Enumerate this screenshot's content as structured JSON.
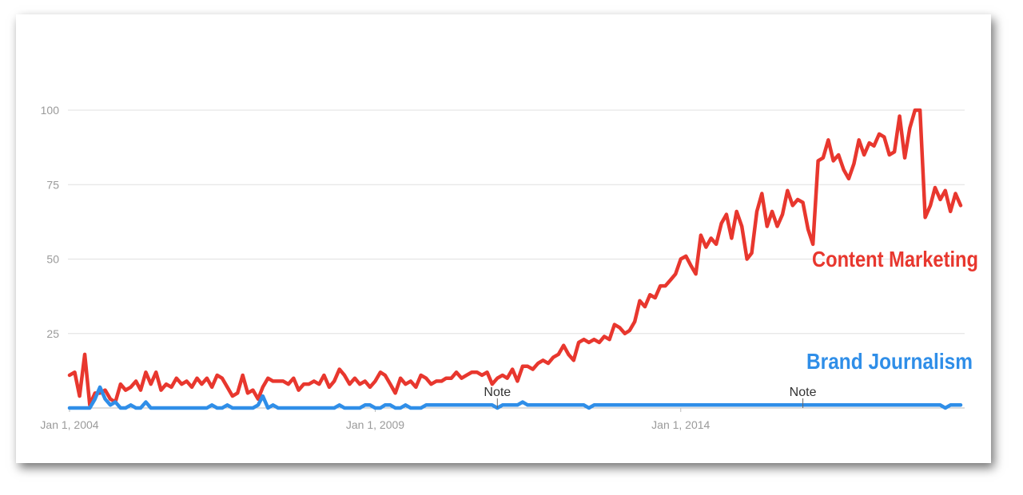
{
  "chart_data": {
    "type": "line",
    "x": [
      "2004-01-01",
      "2004-02-01",
      "2004-03-01",
      "2004-04-01",
      "2004-05-01",
      "2004-06-01",
      "2004-07-01",
      "2004-08-01",
      "2004-09-01",
      "2004-10-01",
      "2004-11-01",
      "2004-12-01",
      "2005-01-01",
      "2005-02-01",
      "2005-03-01",
      "2005-04-01",
      "2005-05-01",
      "2005-06-01",
      "2005-07-01",
      "2005-08-01",
      "2005-09-01",
      "2005-10-01",
      "2005-11-01",
      "2005-12-01",
      "2006-01-01",
      "2006-02-01",
      "2006-03-01",
      "2006-04-01",
      "2006-05-01",
      "2006-06-01",
      "2006-07-01",
      "2006-08-01",
      "2006-09-01",
      "2006-10-01",
      "2006-11-01",
      "2006-12-01",
      "2007-01-01",
      "2007-02-01",
      "2007-03-01",
      "2007-04-01",
      "2007-05-01",
      "2007-06-01",
      "2007-07-01",
      "2007-08-01",
      "2007-09-01",
      "2007-10-01",
      "2007-11-01",
      "2007-12-01",
      "2008-01-01",
      "2008-02-01",
      "2008-03-01",
      "2008-04-01",
      "2008-05-01",
      "2008-06-01",
      "2008-07-01",
      "2008-08-01",
      "2008-09-01",
      "2008-10-01",
      "2008-11-01",
      "2008-12-01",
      "2009-01-01",
      "2009-02-01",
      "2009-03-01",
      "2009-04-01",
      "2009-05-01",
      "2009-06-01",
      "2009-07-01",
      "2009-08-01",
      "2009-09-01",
      "2009-10-01",
      "2009-11-01",
      "2009-12-01",
      "2010-01-01",
      "2010-02-01",
      "2010-03-01",
      "2010-04-01",
      "2010-05-01",
      "2010-06-01",
      "2010-07-01",
      "2010-08-01",
      "2010-09-01",
      "2010-10-01",
      "2010-11-01",
      "2010-12-01",
      "2011-01-01",
      "2011-02-01",
      "2011-03-01",
      "2011-04-01",
      "2011-05-01",
      "2011-06-01",
      "2011-07-01",
      "2011-08-01",
      "2011-09-01",
      "2011-10-01",
      "2011-11-01",
      "2011-12-01",
      "2012-01-01",
      "2012-02-01",
      "2012-03-01",
      "2012-04-01",
      "2012-05-01",
      "2012-06-01",
      "2012-07-01",
      "2012-08-01",
      "2012-09-01",
      "2012-10-01",
      "2012-11-01",
      "2012-12-01",
      "2013-01-01",
      "2013-02-01",
      "2013-03-01",
      "2013-04-01",
      "2013-05-01",
      "2013-06-01",
      "2013-07-01",
      "2013-08-01",
      "2013-09-01",
      "2013-10-01",
      "2013-11-01",
      "2013-12-01",
      "2014-01-01",
      "2014-02-01",
      "2014-03-01",
      "2014-04-01",
      "2014-05-01",
      "2014-06-01",
      "2014-07-01",
      "2014-08-01",
      "2014-09-01",
      "2014-10-01",
      "2014-11-01",
      "2014-12-01",
      "2015-01-01",
      "2015-02-01",
      "2015-03-01",
      "2015-04-01",
      "2015-05-01",
      "2015-06-01",
      "2015-07-01",
      "2015-08-01",
      "2015-09-01",
      "2015-10-01",
      "2015-11-01",
      "2015-12-01",
      "2016-01-01",
      "2016-02-01",
      "2016-03-01",
      "2016-04-01",
      "2016-05-01",
      "2016-06-01",
      "2016-07-01",
      "2016-08-01",
      "2016-09-01",
      "2016-10-01",
      "2016-11-01",
      "2016-12-01",
      "2017-01-01",
      "2017-02-01",
      "2017-03-01",
      "2017-04-01",
      "2017-05-01",
      "2017-06-01",
      "2017-07-01",
      "2017-08-01",
      "2017-09-01",
      "2017-10-01",
      "2017-11-01",
      "2017-12-01",
      "2018-01-01",
      "2018-02-01",
      "2018-03-01",
      "2018-04-01",
      "2018-05-01",
      "2018-06-01",
      "2018-07-01",
      "2018-08-01"
    ],
    "series": [
      {
        "name": "Content Marketing",
        "color": "#e8372e",
        "values": [
          11,
          12,
          4,
          18,
          1,
          5,
          5,
          6,
          3,
          2,
          8,
          6,
          7,
          9,
          6,
          12,
          8,
          12,
          6,
          8,
          7,
          10,
          8,
          9,
          7,
          10,
          8,
          10,
          7,
          11,
          10,
          7,
          4,
          5,
          11,
          5,
          6,
          3,
          7,
          10,
          9,
          9,
          9,
          8,
          10,
          6,
          8,
          8,
          9,
          8,
          11,
          7,
          9,
          13,
          11,
          8,
          10,
          8,
          9,
          7,
          9,
          12,
          11,
          8,
          5,
          10,
          8,
          9,
          7,
          11,
          10,
          8,
          9,
          9,
          10,
          10,
          12,
          10,
          11,
          12,
          12,
          11,
          12,
          8,
          10,
          11,
          10,
          13,
          9,
          14,
          14,
          13,
          15,
          16,
          15,
          17,
          18,
          21,
          18,
          16,
          22,
          23,
          22,
          23,
          22,
          24,
          23,
          28,
          27,
          25,
          26,
          29,
          36,
          34,
          38,
          37,
          41,
          41,
          43,
          45,
          50,
          51,
          48,
          45,
          58,
          54,
          57,
          55,
          62,
          65,
          57,
          66,
          61,
          50,
          52,
          66,
          72,
          61,
          66,
          61,
          65,
          73,
          68,
          70,
          69,
          60,
          55,
          83,
          84,
          90,
          83,
          85,
          80,
          77,
          82,
          90,
          85,
          89,
          88,
          92,
          91,
          85,
          86,
          98,
          84,
          94,
          100,
          100,
          64,
          68,
          74,
          70,
          73,
          66,
          72,
          68
        ]
      },
      {
        "name": "Brand Journalism",
        "color": "#2f8ee8",
        "values": [
          0,
          0,
          0,
          0,
          0,
          3,
          7,
          3,
          1,
          2,
          0,
          0,
          1,
          0,
          0,
          2,
          0,
          0,
          0,
          0,
          0,
          0,
          0,
          0,
          0,
          0,
          0,
          0,
          1,
          0,
          0,
          1,
          0,
          0,
          0,
          0,
          0,
          1,
          4,
          0,
          1,
          0,
          0,
          0,
          0,
          0,
          0,
          0,
          0,
          0,
          0,
          0,
          0,
          1,
          0,
          0,
          0,
          0,
          1,
          1,
          0,
          0,
          1,
          1,
          0,
          0,
          1,
          0,
          0,
          0,
          1,
          1,
          1,
          1,
          1,
          1,
          1,
          1,
          1,
          1,
          1,
          1,
          1,
          1,
          0,
          1,
          1,
          1,
          1,
          2,
          1,
          1,
          1,
          1,
          1,
          1,
          1,
          1,
          1,
          1,
          1,
          1,
          0,
          1,
          1,
          1,
          1,
          1,
          1,
          1,
          1,
          1,
          1,
          1,
          1,
          1,
          1,
          1,
          1,
          1,
          1,
          1,
          1,
          1,
          1,
          1,
          1,
          1,
          1,
          1,
          1,
          1,
          1,
          1,
          1,
          1,
          1,
          1,
          1,
          1,
          1,
          1,
          1,
          1,
          1,
          1,
          1,
          1,
          1,
          1,
          1,
          1,
          1,
          1,
          1,
          1,
          1,
          1,
          1,
          1,
          1,
          1,
          1,
          1,
          1,
          1,
          1,
          1,
          1,
          1,
          1,
          1,
          0,
          1,
          1,
          1
        ]
      }
    ],
    "xlim": [
      "2004-01-01",
      "2018-08-01"
    ],
    "xticks": [
      {
        "value": "2004-01-01",
        "label": "Jan 1, 2004"
      },
      {
        "value": "2009-01-01",
        "label": "Jan 1, 2009"
      },
      {
        "value": "2014-01-01",
        "label": "Jan 1, 2014"
      }
    ],
    "ylim": [
      0,
      100
    ],
    "yticks": [
      25,
      50,
      75,
      100
    ],
    "grid": true,
    "annotations": [
      {
        "text": "Note",
        "x": "2011-01-01"
      },
      {
        "text": "Note",
        "x": "2016-01-01"
      }
    ]
  }
}
